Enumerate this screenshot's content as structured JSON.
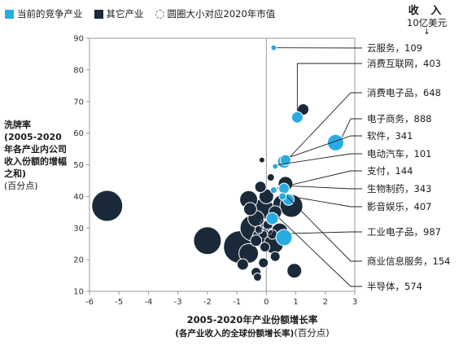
{
  "legend": {
    "current": {
      "label": "当前的竞争产业",
      "color": "#29abe2"
    },
    "other": {
      "label": "其它产业",
      "color": "#1a2a3a"
    },
    "size_note": "圆圈大小对应2020年市值"
  },
  "revenue_note": {
    "title": "收 入",
    "unit": "10亿美元",
    "arrow": "↓"
  },
  "y_axis_label": {
    "title": "洗牌率",
    "desc": "(2005-2020年各产业内公司收入份额的增幅之和)",
    "unit": "(百分点)"
  },
  "x_axis_label": {
    "title": "2005-2020年产业份额增长率",
    "desc": "(各产业收入的全球份额增长率)",
    "unit": "(百分点)"
  },
  "chart_data": {
    "type": "scatter",
    "xlim": [
      -6,
      3
    ],
    "ylim": [
      10,
      90
    ],
    "x_ticks": [
      "-6",
      "-5",
      "-4",
      "-3",
      "-2",
      "-1",
      "0",
      "1",
      "2",
      "3"
    ],
    "y_ticks": [
      "10",
      "20",
      "30",
      "40",
      "50",
      "60",
      "70",
      "80",
      "90"
    ],
    "grid": false,
    "colors": {
      "current": "#29abe2",
      "other": "#1a2a3a"
    },
    "series": [
      {
        "name": "当前的竞争产业",
        "points": [
          {
            "label": "云服务，109",
            "x": 0.25,
            "y": 87,
            "r": 3.5,
            "lx": 3,
            "ly": 86
          },
          {
            "label": "消费互联网，403",
            "x": 1.05,
            "y": 65,
            "r": 7,
            "lx": 4.5,
            "ly": 78
          },
          {
            "label": "消费电子品，648",
            "x": 0.6,
            "y": 51,
            "r": 8,
            "lx": 5.5,
            "ly": 70
          },
          {
            "label": "电子商务，888",
            "x": 2.35,
            "y": 57,
            "r": 10,
            "lx": 5.5,
            "ly": 61
          },
          {
            "label": "软件，341",
            "x": 0.65,
            "y": 51.5,
            "r": 6.5,
            "lx": 5.5,
            "ly": 54
          },
          {
            "label": "电动汽车，101",
            "x": 0.3,
            "y": 49.5,
            "r": 3.5,
            "lx": 5.5,
            "ly": 48
          },
          {
            "label": "支付，144",
            "x": 0.25,
            "y": 42,
            "r": 4,
            "lx": 5.5,
            "ly": 42
          },
          {
            "label": "生物制药，343",
            "x": 0.6,
            "y": 42.5,
            "r": 6.5,
            "lx": 5.5,
            "ly": 36
          },
          {
            "label": "影音娱乐，407",
            "x": 0.75,
            "y": 39,
            "r": 7,
            "lx": 5.5,
            "ly": 30
          },
          {
            "label": "工业电子品，987",
            "x": 0.6,
            "y": 27,
            "r": 10,
            "lx": 5.5,
            "ly": 21
          },
          {
            "label": "商业信息服务，154",
            "x": 0.55,
            "y": 40,
            "r": 4.5,
            "lx": 5.5,
            "ly": 13
          },
          {
            "label": "半导体，574",
            "x": 0.2,
            "y": 33,
            "r": 7.5,
            "lx": 5.5,
            "ly": 5
          }
        ]
      },
      {
        "name": "其它产业",
        "points": [
          {
            "x": -5.4,
            "y": 37,
            "r": 19
          },
          {
            "x": -2.0,
            "y": 26,
            "r": 17
          },
          {
            "x": -0.9,
            "y": 24,
            "r": 20
          },
          {
            "x": -0.45,
            "y": 30,
            "r": 16
          },
          {
            "x": -0.1,
            "y": 36,
            "r": 13
          },
          {
            "x": 0.55,
            "y": 37.5,
            "r": 12
          },
          {
            "x": 0.85,
            "y": 37,
            "r": 14
          },
          {
            "x": -0.6,
            "y": 39,
            "r": 11
          },
          {
            "x": -0.35,
            "y": 33,
            "r": 10
          },
          {
            "x": -0.6,
            "y": 22,
            "r": 12
          },
          {
            "x": -0.15,
            "y": 27,
            "r": 12
          },
          {
            "x": 0.25,
            "y": 25,
            "r": 12
          },
          {
            "x": 0.45,
            "y": 29,
            "r": 10
          },
          {
            "x": 0.0,
            "y": 40,
            "r": 9
          },
          {
            "x": -0.2,
            "y": 43,
            "r": 7
          },
          {
            "x": 0.65,
            "y": 44,
            "r": 9
          },
          {
            "x": 1.25,
            "y": 67.5,
            "r": 7
          },
          {
            "x": 0.95,
            "y": 16.5,
            "r": 9
          },
          {
            "x": -0.8,
            "y": 18.5,
            "r": 7
          },
          {
            "x": -0.35,
            "y": 16,
            "r": 6
          },
          {
            "x": -0.1,
            "y": 19,
            "r": 6
          },
          {
            "x": 0.3,
            "y": 21,
            "r": 6
          },
          {
            "x": -0.3,
            "y": 14.5,
            "r": 5
          },
          {
            "x": -0.15,
            "y": 51.5,
            "r": 3.5
          },
          {
            "x": 0.15,
            "y": 46,
            "r": 4.5
          },
          {
            "x": -0.35,
            "y": 26,
            "r": 7
          },
          {
            "x": 0.05,
            "y": 31,
            "r": 6
          },
          {
            "x": -0.55,
            "y": 36,
            "r": 8
          },
          {
            "x": 0.3,
            "y": 35,
            "r": 8
          },
          {
            "x": -0.05,
            "y": 24,
            "r": 6
          },
          {
            "x": 0.2,
            "y": 28,
            "r": 6
          },
          {
            "x": -0.25,
            "y": 29.5,
            "r": 5
          }
        ]
      }
    ]
  }
}
